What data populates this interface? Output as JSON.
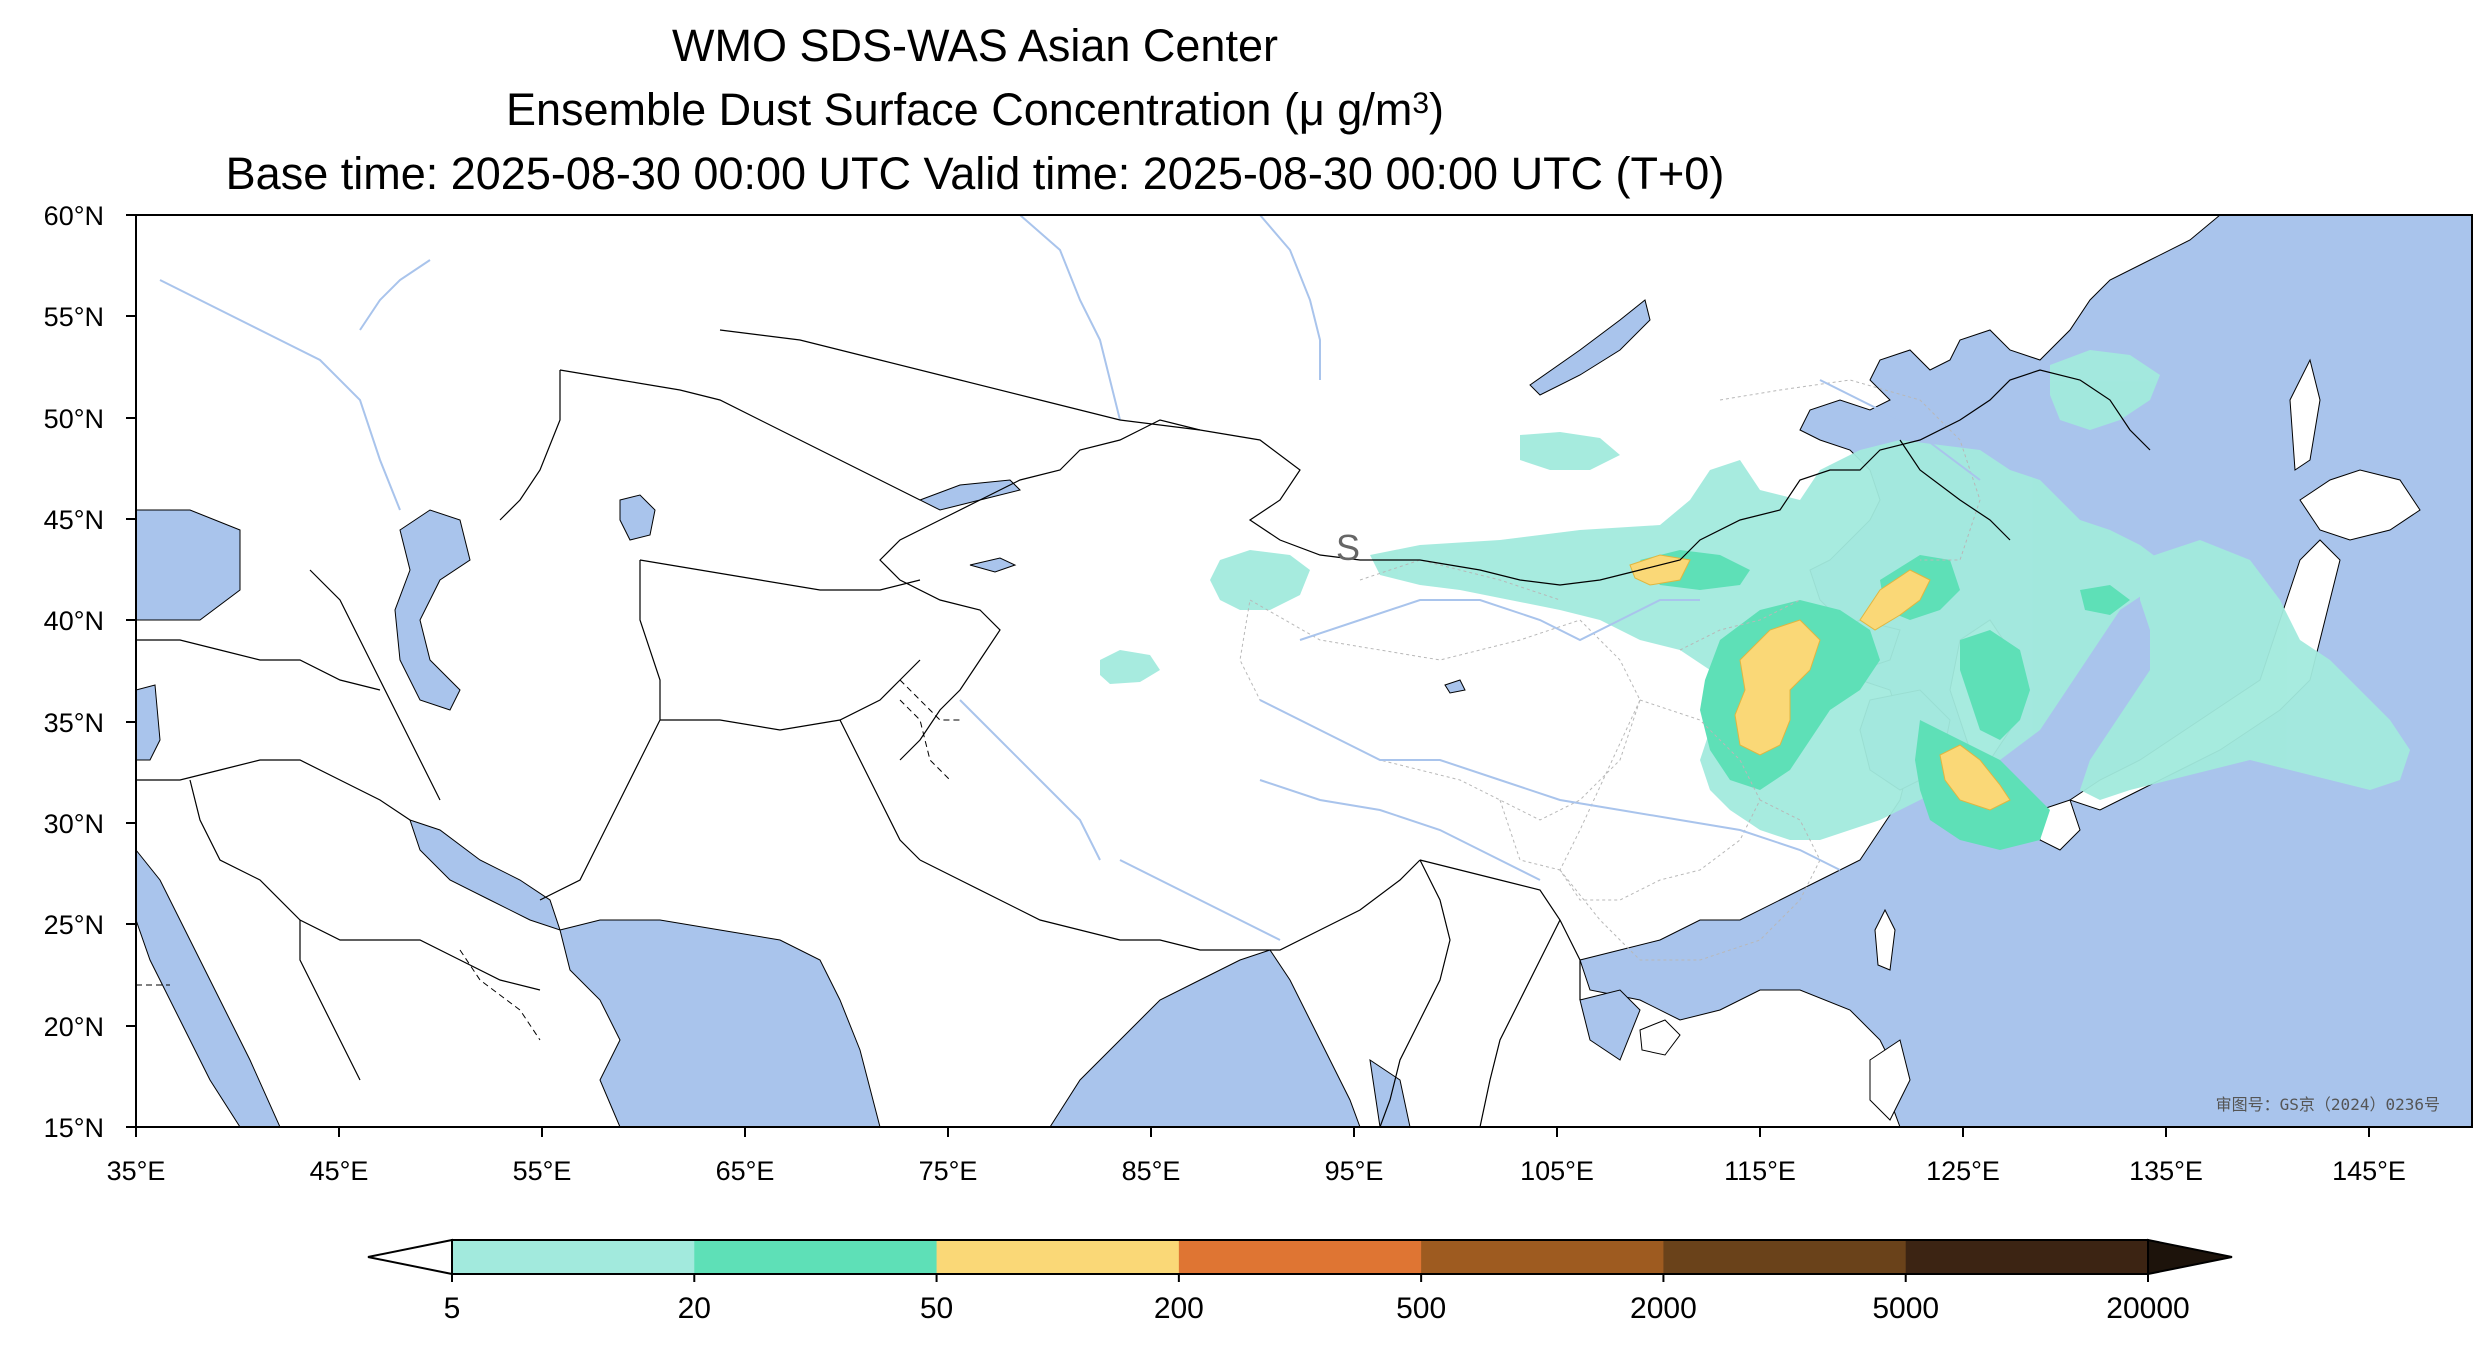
{
  "header": {
    "title": "WMO SDS-WAS Asian Center",
    "subtitle_prefix": "Ensemble Dust Surface Concentration (",
    "subtitle_unit": "μ g/m",
    "subtitle_sup": "3",
    "subtitle_suffix": ")",
    "time_line": "Base time: 2025-08-30 00:00 UTC Valid time: 2025-08-30 00:00 UTC (T+0)"
  },
  "map": {
    "approval_number": "审图号：GS京（2024）0236号",
    "marker_letter": "S",
    "lat_ticks": [
      "60°N",
      "55°N",
      "50°N",
      "45°N",
      "40°N",
      "35°N",
      "30°N",
      "25°N",
      "20°N",
      "15°N"
    ],
    "lon_ticks": [
      "35°E",
      "45°E",
      "55°E",
      "65°E",
      "75°E",
      "85°E",
      "95°E",
      "105°E",
      "115°E",
      "125°E",
      "135°E",
      "145°E"
    ],
    "colors": {
      "ocean": "#a9c4ec",
      "land": "#ffffff",
      "border": "#000000",
      "river": "#a9c4ec",
      "province": "#b8b8b8"
    }
  },
  "colorbar": {
    "labels": [
      "5",
      "20",
      "50",
      "200",
      "500",
      "2000",
      "5000",
      "20000"
    ],
    "colors": [
      "#a2eadd",
      "#5ee0b7",
      "#fad877",
      "#df7533",
      "#9e5b20",
      "#6a421a",
      "#3c2413"
    ],
    "under_color": "#ffffff",
    "over_color": "#1d130b"
  }
}
